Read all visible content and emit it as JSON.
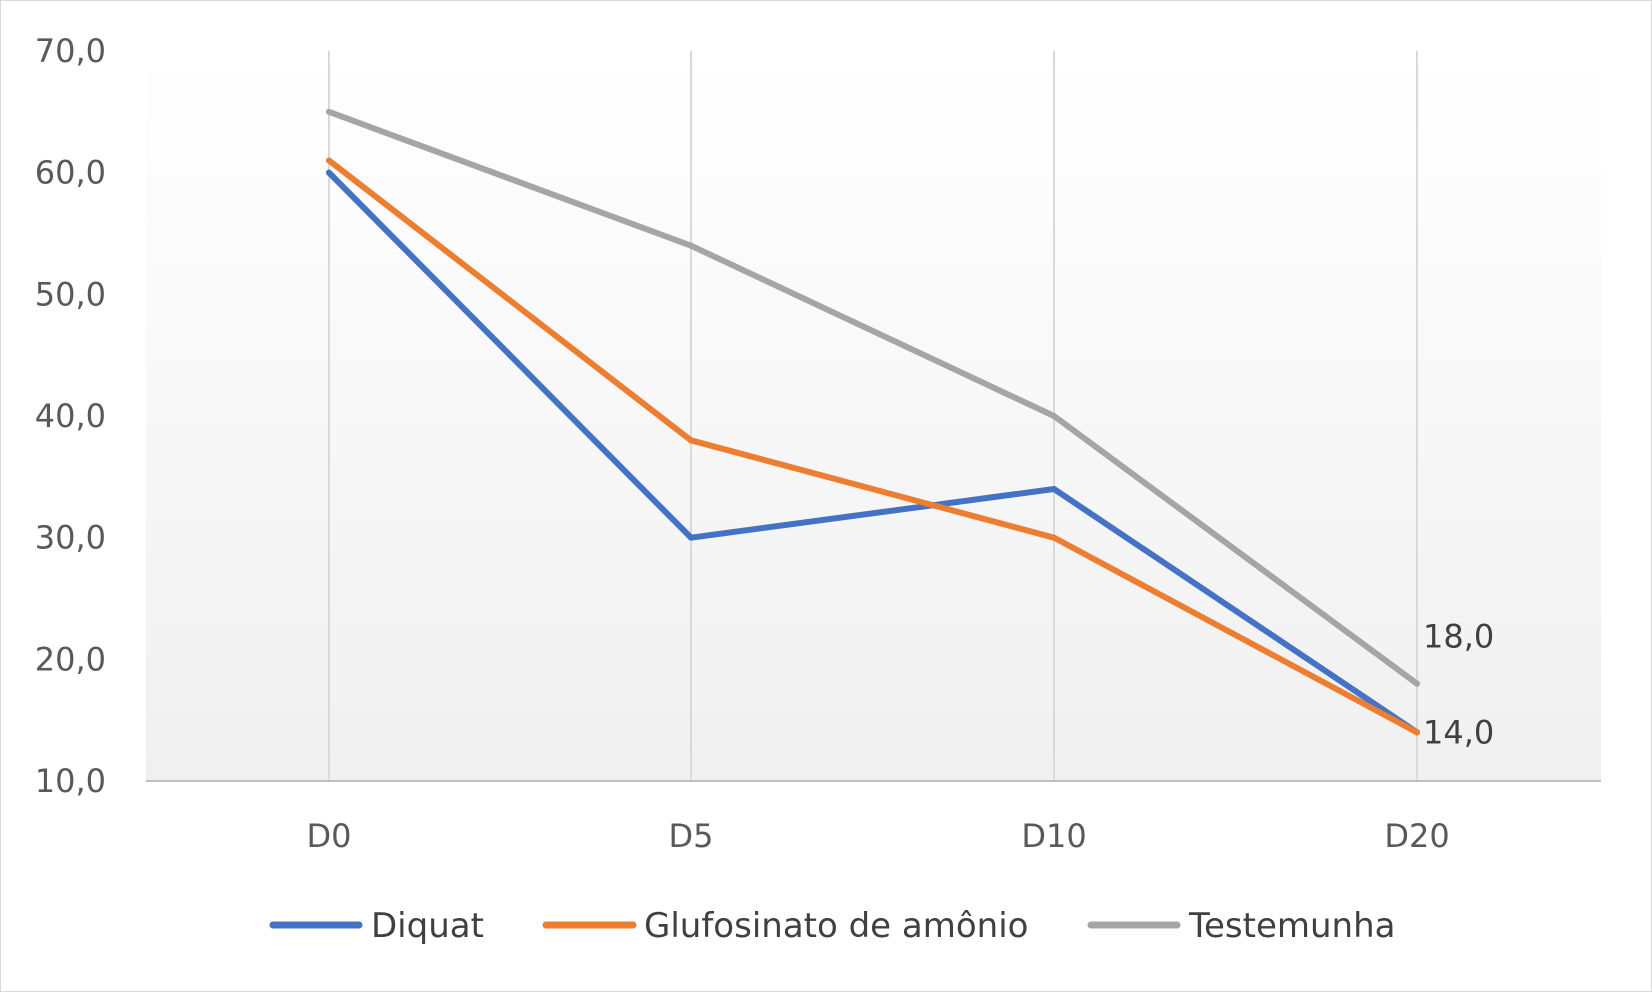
{
  "chart_data": {
    "type": "line",
    "title": "",
    "xlabel": "",
    "ylabel": "",
    "categories": [
      "D0",
      "D5",
      "D10",
      "D20"
    ],
    "ylim": [
      10,
      70
    ],
    "yticks": [
      "10,0",
      "20,0",
      "30,0",
      "40,0",
      "50,0",
      "60,0",
      "70,0"
    ],
    "grid": "vertical",
    "legend_position": "bottom",
    "series": [
      {
        "name": "Diquat",
        "color": "#4472c4",
        "values": [
          60,
          30,
          34,
          14
        ]
      },
      {
        "name": "Glufosinato de amônio",
        "color": "#ed7d31",
        "values": [
          61,
          38,
          30,
          14
        ]
      },
      {
        "name": "Testemunha",
        "color": "#a5a5a5",
        "values": [
          65,
          54,
          40,
          18
        ]
      }
    ],
    "data_labels": [
      {
        "series": 2,
        "index": 3,
        "text": "18,0"
      },
      {
        "series": 1,
        "index": 3,
        "text": "14,0"
      }
    ]
  }
}
